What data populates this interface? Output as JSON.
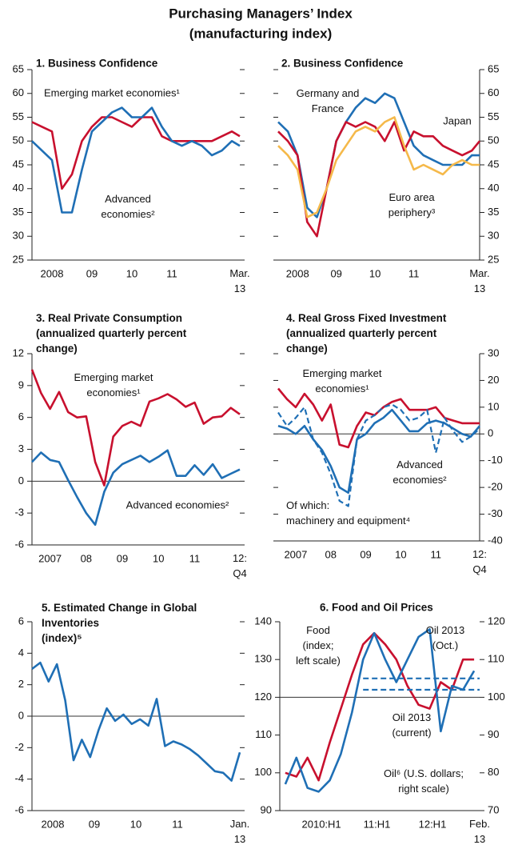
{
  "title": "Purchasing Managers’ Index",
  "subtitle": "(manufacturing index)",
  "chart_data": [
    {
      "type": "line",
      "title": "1. Business Confidence",
      "axis_side": "left",
      "x": [
        2008,
        2008.25,
        2008.5,
        2008.75,
        2009,
        2009.25,
        2009.5,
        2009.75,
        2010,
        2010.25,
        2010.5,
        2010.75,
        2011,
        2011.25,
        2011.5,
        2011.75,
        2012,
        2012.25,
        2012.5,
        2012.75,
        2013,
        2013.2
      ],
      "xlim": [
        2008,
        2013.2
      ],
      "xticks": [
        {
          "value": 2008.5,
          "label": "2008"
        },
        {
          "value": 2009.5,
          "label": "09"
        },
        {
          "value": 2010.5,
          "label": "10"
        },
        {
          "value": 2011.5,
          "label": "11"
        },
        {
          "value": 2013.2,
          "label": "Mar.\n13"
        }
      ],
      "ylim": [
        25,
        65
      ],
      "yticks": [
        25,
        30,
        35,
        40,
        45,
        50,
        55,
        60,
        65
      ],
      "series": [
        {
          "name": "Emerging market economies¹",
          "color": "#c8102e",
          "values": [
            54,
            53,
            52,
            40,
            43,
            50,
            53,
            55,
            55,
            54,
            53,
            55,
            55,
            51,
            50,
            50,
            50,
            50,
            50,
            51,
            52,
            51
          ]
        },
        {
          "name": "Advanced\neconomies²",
          "color": "#1f6fb5",
          "values": [
            50,
            48,
            46,
            35,
            35,
            44,
            52,
            54,
            56,
            57,
            55,
            55,
            57,
            53,
            50,
            49,
            50,
            49,
            47,
            48,
            50,
            49
          ]
        }
      ]
    },
    {
      "type": "line",
      "title": "2. Business Confidence",
      "axis_side": "right",
      "x": [
        2008,
        2008.25,
        2008.5,
        2008.75,
        2009,
        2009.25,
        2009.5,
        2009.75,
        2010,
        2010.25,
        2010.5,
        2010.75,
        2011,
        2011.25,
        2011.5,
        2011.75,
        2012,
        2012.25,
        2012.5,
        2012.75,
        2013,
        2013.2
      ],
      "xlim": [
        2008,
        2013.2
      ],
      "xticks": [
        {
          "value": 2008.5,
          "label": "2008"
        },
        {
          "value": 2009.5,
          "label": "09"
        },
        {
          "value": 2010.5,
          "label": "10"
        },
        {
          "value": 2011.5,
          "label": "11"
        },
        {
          "value": 2013.2,
          "label": "Mar.\n13"
        }
      ],
      "ylim": [
        25,
        65
      ],
      "yticks": [
        25,
        30,
        35,
        40,
        45,
        50,
        55,
        60,
        65
      ],
      "series": [
        {
          "name": "Germany and\nFrance",
          "color": "#1f6fb5",
          "values": [
            54,
            52,
            47,
            36,
            34,
            40,
            50,
            54,
            57,
            59,
            58,
            60,
            59,
            54,
            49,
            47,
            46,
            45,
            45,
            45,
            47,
            47
          ]
        },
        {
          "name": "Japan",
          "color": "#c8102e",
          "values": [
            52,
            50,
            47,
            33,
            30,
            40,
            50,
            54,
            53,
            54,
            53,
            50,
            54,
            48,
            52,
            51,
            51,
            49,
            48,
            47,
            48,
            50
          ]
        },
        {
          "name": "Euro area\nperiphery³",
          "color": "#f5b94a",
          "values": [
            49,
            47,
            44,
            34,
            35,
            40,
            46,
            49,
            52,
            53,
            52,
            54,
            55,
            49,
            44,
            45,
            44,
            43,
            45,
            46,
            45,
            45
          ]
        }
      ]
    },
    {
      "type": "line",
      "title": "3. Real Private Consumption\n(annualized quarterly percent\nchange)",
      "axis_side": "left",
      "x": [
        2007,
        2007.25,
        2007.5,
        2007.75,
        2008,
        2008.25,
        2008.5,
        2008.75,
        2009,
        2009.25,
        2009.5,
        2009.75,
        2010,
        2010.25,
        2010.5,
        2010.75,
        2011,
        2011.25,
        2011.5,
        2011.75,
        2012,
        2012.25,
        2012.5,
        2012.75
      ],
      "xlim": [
        2007,
        2012.75
      ],
      "xticks": [
        {
          "value": 2007.5,
          "label": "2007"
        },
        {
          "value": 2008.5,
          "label": "08"
        },
        {
          "value": 2009.5,
          "label": "09"
        },
        {
          "value": 2010.5,
          "label": "10"
        },
        {
          "value": 2011.5,
          "label": "11"
        },
        {
          "value": 2012.75,
          "label": "12:\nQ4"
        }
      ],
      "ylim": [
        -6,
        12
      ],
      "yticks": [
        -6,
        -3,
        0,
        3,
        6,
        9,
        12
      ],
      "reference_line": 0,
      "series": [
        {
          "name": "Emerging market\neconomies¹",
          "color": "#c8102e",
          "values": [
            10.5,
            8.3,
            6.8,
            8.4,
            6.5,
            6.0,
            6.1,
            1.8,
            -0.4,
            4.2,
            5.2,
            5.6,
            5.2,
            7.5,
            7.8,
            8.2,
            7.7,
            7.0,
            7.4,
            5.4,
            6.0,
            6.1,
            6.9,
            6.3
          ]
        },
        {
          "name": "Advanced economies²",
          "color": "#1f6fb5",
          "values": [
            1.8,
            2.7,
            2.0,
            1.8,
            0.1,
            -1.5,
            -3.0,
            -4.1,
            -1.0,
            0.8,
            1.6,
            2.0,
            2.4,
            1.8,
            2.3,
            2.9,
            0.5,
            0.5,
            1.5,
            0.6,
            1.6,
            0.3,
            0.7,
            1.1
          ]
        }
      ]
    },
    {
      "type": "line",
      "title": "4. Real Gross Fixed Investment\n(annualized quarterly percent\nchange)",
      "axis_side": "right",
      "x": [
        2007,
        2007.25,
        2007.5,
        2007.75,
        2008,
        2008.25,
        2008.5,
        2008.75,
        2009,
        2009.25,
        2009.5,
        2009.75,
        2010,
        2010.25,
        2010.5,
        2010.75,
        2011,
        2011.25,
        2011.5,
        2011.75,
        2012,
        2012.25,
        2012.5,
        2012.75
      ],
      "xlim": [
        2007,
        2012.75
      ],
      "xticks": [
        {
          "value": 2007.5,
          "label": "2007"
        },
        {
          "value": 2008.5,
          "label": "08"
        },
        {
          "value": 2009.5,
          "label": "09"
        },
        {
          "value": 2010.5,
          "label": "10"
        },
        {
          "value": 2011.5,
          "label": "11"
        },
        {
          "value": 2012.75,
          "label": "12:\nQ4"
        }
      ],
      "ylim": [
        -40,
        30
      ],
      "yticks": [
        -40,
        -30,
        -20,
        -10,
        0,
        10,
        20,
        30
      ],
      "reference_line": 0,
      "series": [
        {
          "name": "Emerging market\neconomies¹",
          "color": "#c8102e",
          "values": [
            17,
            13,
            10,
            15,
            11,
            5,
            11,
            -4,
            -5,
            3,
            8,
            7,
            10,
            12,
            13,
            9,
            9,
            9,
            10,
            6,
            5,
            4,
            4,
            4
          ]
        },
        {
          "name": "Advanced\neconomies²",
          "color": "#1f6fb5",
          "values": [
            3,
            2,
            0,
            3,
            -2,
            -6,
            -12,
            -20,
            -22,
            -2,
            0,
            4,
            6,
            9,
            5,
            1,
            1,
            4,
            5,
            4,
            2,
            0,
            -1,
            3
          ]
        },
        {
          "name": "Of which:\nmachinery and equipment⁴",
          "color": "#1f6fb5",
          "dashed": true,
          "values": [
            8,
            3,
            6,
            10,
            -2,
            -7,
            -15,
            -25,
            -27,
            -2,
            5,
            7,
            10,
            11,
            9,
            5,
            6,
            9,
            -7,
            6,
            1,
            -3,
            -1,
            2
          ]
        }
      ]
    },
    {
      "type": "line",
      "title": "5. Estimated Change in Global\nInventories\n(index)⁵",
      "axis_side": "left",
      "x": [
        2008,
        2008.2,
        2008.4,
        2008.6,
        2008.8,
        2009,
        2009.2,
        2009.4,
        2009.6,
        2009.8,
        2010,
        2010.2,
        2010.4,
        2010.6,
        2010.8,
        2011,
        2011.2,
        2011.4,
        2011.6,
        2011.8,
        2012,
        2012.2,
        2012.4,
        2012.6,
        2012.8,
        2013
      ],
      "xlim": [
        2008,
        2013
      ],
      "xticks": [
        {
          "value": 2008.5,
          "label": "2008"
        },
        {
          "value": 2009.5,
          "label": "09"
        },
        {
          "value": 2010.5,
          "label": "10"
        },
        {
          "value": 2011.5,
          "label": "11"
        },
        {
          "value": 2013,
          "label": "Jan.\n13"
        }
      ],
      "ylim": [
        -6,
        6
      ],
      "yticks": [
        -6,
        -4,
        -2,
        0,
        2,
        4,
        6
      ],
      "reference_line": 0,
      "color": "#1f6fb5",
      "values": [
        3.0,
        3.4,
        2.2,
        3.3,
        1.0,
        -2.8,
        -1.5,
        -2.6,
        -0.9,
        0.5,
        -0.3,
        0.1,
        -0.5,
        -0.2,
        -0.6,
        1.1,
        -1.9,
        -1.6,
        -1.8,
        -2.1,
        -2.5,
        -3.0,
        -3.5,
        -3.6,
        -4.1,
        -2.3
      ]
    },
    {
      "type": "line",
      "title": "6. Food and Oil Prices",
      "axis_side": "left",
      "x": [
        2009.6,
        2009.8,
        2010,
        2010.2,
        2010.4,
        2010.6,
        2010.8,
        2011,
        2011.2,
        2011.4,
        2011.6,
        2011.8,
        2012,
        2012.2,
        2012.4,
        2012.6,
        2012.8,
        2013
      ],
      "xlim": [
        2009.5,
        2013.1
      ],
      "xticks": [
        {
          "value": 2010.25,
          "label": "2010:H1"
        },
        {
          "value": 2011.25,
          "label": "11:H1"
        },
        {
          "value": 2012.25,
          "label": "12:H1"
        },
        {
          "value": 2013.1,
          "label": "Feb.\n13"
        }
      ],
      "ylim": [
        90,
        140
      ],
      "yticks": [
        90,
        100,
        110,
        120,
        130,
        140
      ],
      "y2lim": [
        70,
        120
      ],
      "y2ticks": [
        70,
        80,
        90,
        100,
        110,
        120
      ],
      "reference_line": 120,
      "series": [
        {
          "name": "Food\n(index;\nleft scale)",
          "color": "#c8102e",
          "values": [
            100,
            99,
            104,
            98,
            108,
            117,
            126,
            134,
            137,
            134,
            130,
            123,
            118,
            117,
            124,
            122,
            130,
            130
          ]
        },
        {
          "name": "Oil⁶ (U.S. dollars;\nright scale)",
          "color": "#1f6fb5",
          "axis": "y2",
          "values": [
            77,
            84,
            76,
            75,
            78,
            85,
            96,
            110,
            117,
            110,
            104,
            110,
            116,
            118,
            91,
            103,
            102,
            107
          ]
        },
        {
          "name": "Oil 2013\n(Oct.)",
          "color": "#1f6fb5",
          "axis": "y2",
          "dashed": true,
          "x": [
            2011,
            2013.1
          ],
          "values": [
            105,
            105
          ]
        },
        {
          "name": "Oil 2013\n(current)",
          "color": "#1f6fb5",
          "axis": "y2",
          "dashed": true,
          "x": [
            2011,
            2013.1
          ],
          "values": [
            102,
            102
          ]
        }
      ]
    }
  ]
}
